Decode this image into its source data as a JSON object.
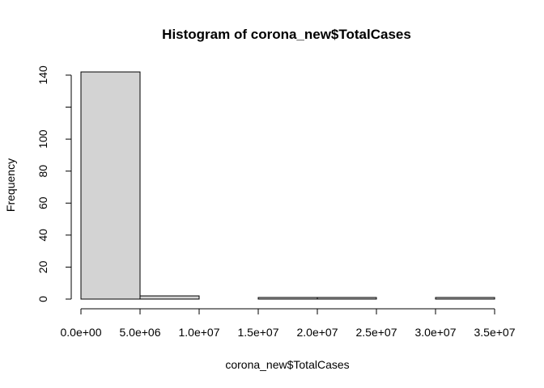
{
  "chart_data": {
    "type": "bar",
    "title": "Histogram of corona_new$TotalCases",
    "xlabel": "corona_new$TotalCases",
    "ylabel": "Frequency",
    "bins": [
      {
        "from": 0,
        "to": 5000000,
        "count": 142
      },
      {
        "from": 5000000,
        "to": 10000000,
        "count": 2
      },
      {
        "from": 10000000,
        "to": 15000000,
        "count": 0
      },
      {
        "from": 15000000,
        "to": 20000000,
        "count": 1
      },
      {
        "from": 20000000,
        "to": 25000000,
        "count": 1
      },
      {
        "from": 25000000,
        "to": 30000000,
        "count": 0
      },
      {
        "from": 30000000,
        "to": 35000000,
        "count": 1
      }
    ],
    "xlim": [
      0,
      35000000
    ],
    "ylim": [
      0,
      142
    ],
    "x_ticks": [
      {
        "value": 0,
        "label": "0.0e+00"
      },
      {
        "value": 5000000,
        "label": "5.0e+06"
      },
      {
        "value": 10000000,
        "label": "1.0e+07"
      },
      {
        "value": 15000000,
        "label": "1.5e+07"
      },
      {
        "value": 20000000,
        "label": "2.0e+07"
      },
      {
        "value": 25000000,
        "label": "2.5e+07"
      },
      {
        "value": 30000000,
        "label": "3.0e+07"
      },
      {
        "value": 35000000,
        "label": "3.5e+07"
      }
    ],
    "y_ticks": [
      {
        "value": 0,
        "label": "0"
      },
      {
        "value": 20,
        "label": "20"
      },
      {
        "value": 40,
        "label": "40"
      },
      {
        "value": 60,
        "label": "60"
      },
      {
        "value": 80,
        "label": "80"
      },
      {
        "value": 100,
        "label": "100"
      },
      {
        "value": 120,
        "label": ""
      },
      {
        "value": 140,
        "label": "140"
      }
    ],
    "grid": false,
    "colors": {
      "bar_fill": "#d3d3d3",
      "bar_stroke": "#000000"
    }
  }
}
